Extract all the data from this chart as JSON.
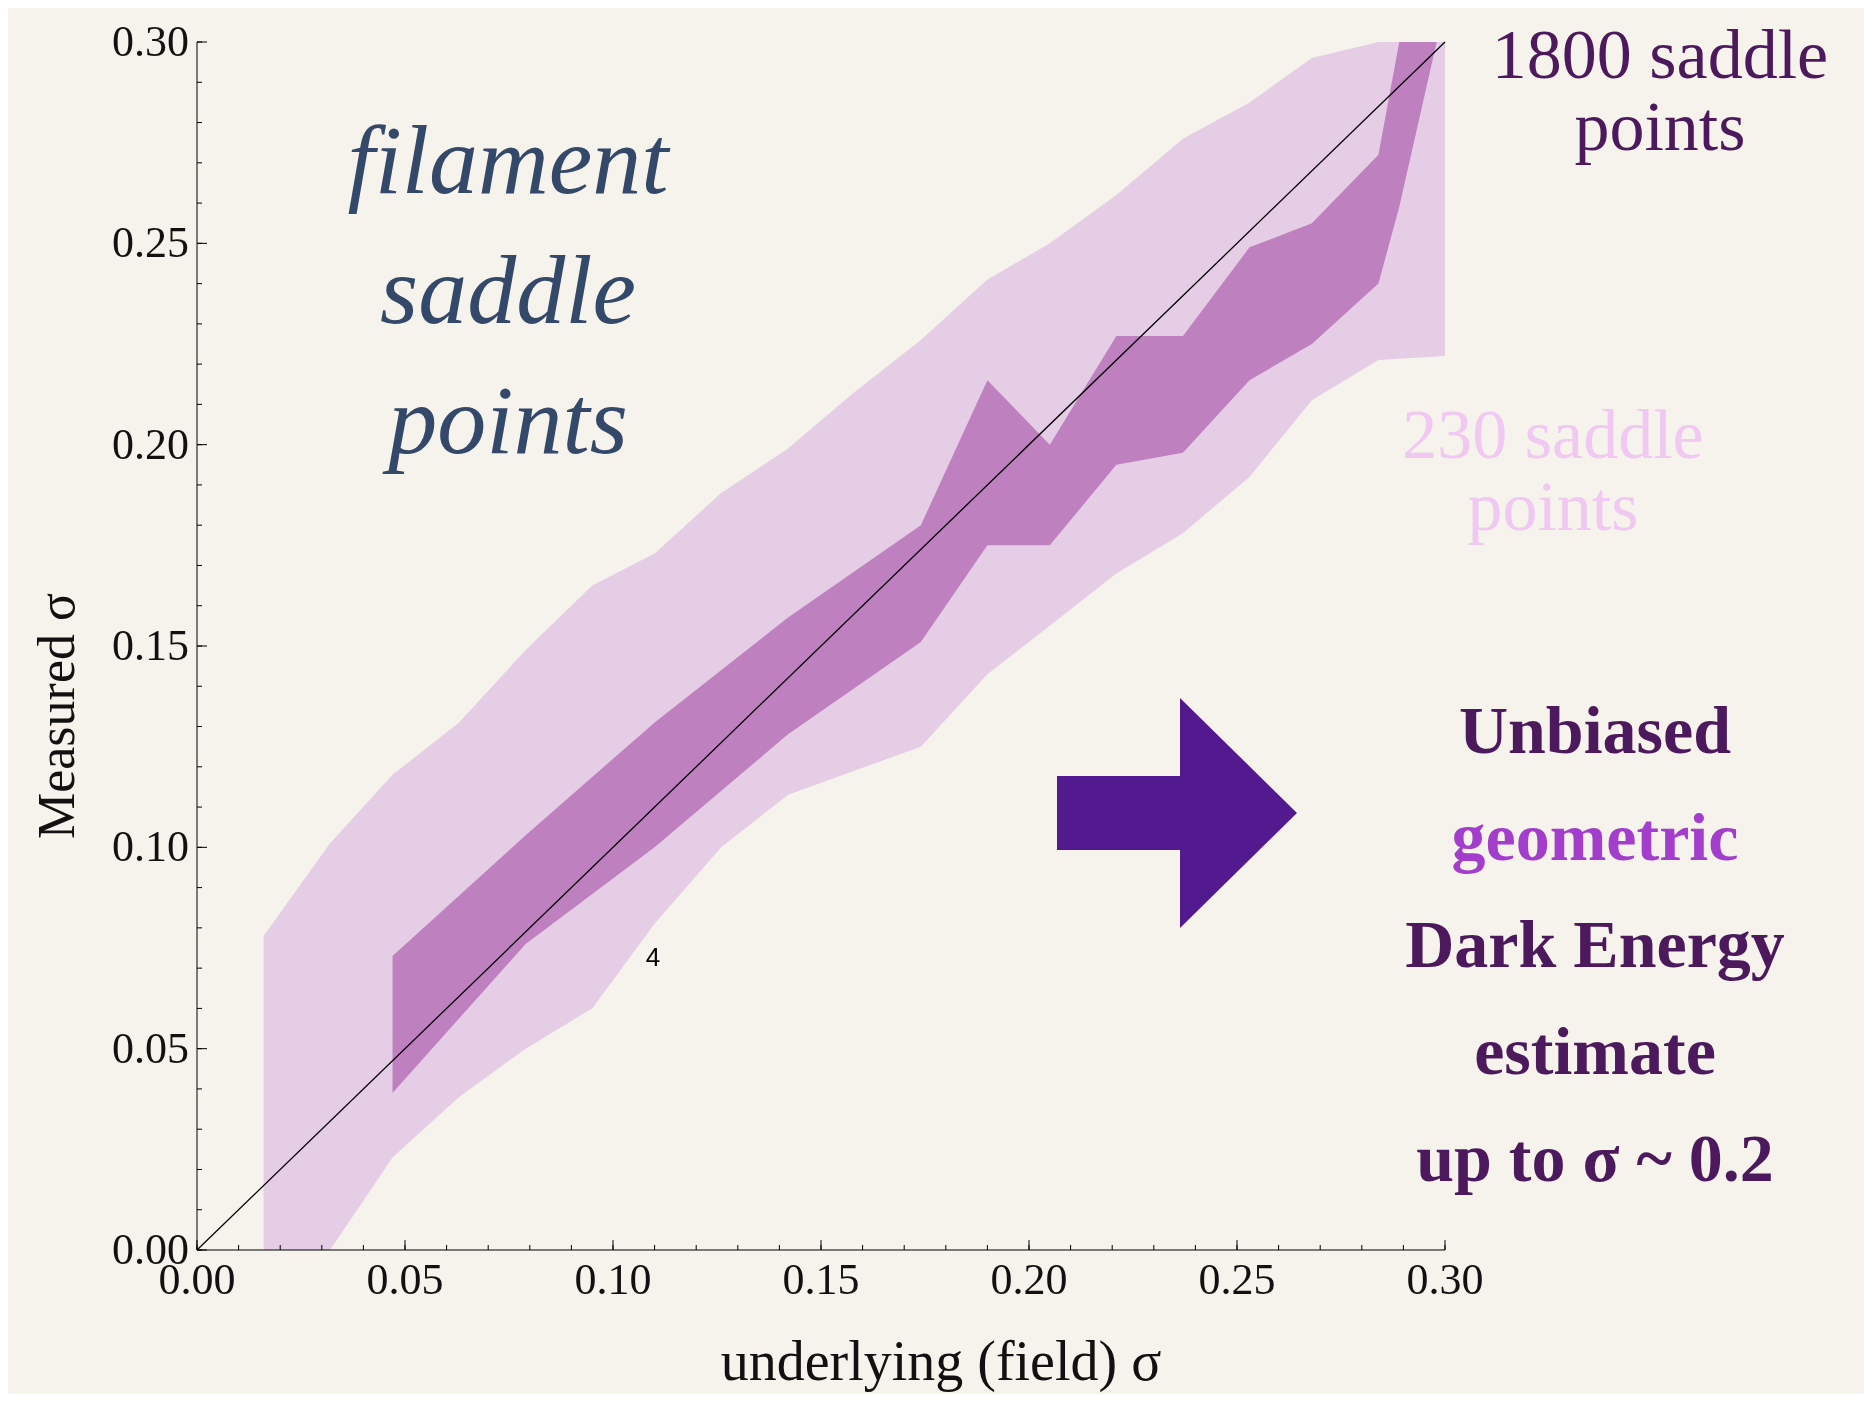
{
  "chart_data": {
    "type": "line",
    "xlabel": "underlying (field) σ",
    "ylabel": "Measured σ",
    "xlim": [
      0,
      0.3
    ],
    "ylim": [
      0,
      0.3
    ],
    "xticks": [
      {
        "value": 0,
        "label": "0.00"
      },
      {
        "value": 0.05,
        "label": "0.05"
      },
      {
        "value": 0.1,
        "label": "0.10"
      },
      {
        "value": 0.15,
        "label": "0.15"
      },
      {
        "value": 0.2,
        "label": "0.20"
      },
      {
        "value": 0.25,
        "label": "0.25"
      },
      {
        "value": 0.3,
        "label": "0.30"
      }
    ],
    "yticks": [
      {
        "value": 0,
        "label": "0.00"
      },
      {
        "value": 0.05,
        "label": "0.05"
      },
      {
        "value": 0.1,
        "label": "0.10"
      },
      {
        "value": 0.15,
        "label": "0.15"
      },
      {
        "value": 0.2,
        "label": "0.20"
      },
      {
        "value": 0.25,
        "label": "0.25"
      },
      {
        "value": 0.3,
        "label": "0.30"
      }
    ],
    "series": [
      {
        "color": "#e6cde6",
        "x": [
          0.016,
          0.032,
          0.047,
          0.063,
          0.079,
          0.095,
          0.11,
          0.126,
          0.142,
          0.158,
          0.174,
          0.19,
          0.205,
          0.221,
          0.237,
          0.253,
          0.268,
          0.284,
          0.3
        ],
        "values": [
          null,
          null,
          null,
          null,
          null,
          null,
          null,
          null,
          null,
          null,
          null,
          null,
          null,
          null,
          null,
          null,
          null,
          null,
          null
        ],
        "lower": [
          0,
          0,
          0.023,
          0.038,
          0.05,
          0.06,
          0.081,
          0.1,
          0.113,
          0.119,
          0.125,
          0.143,
          0.155,
          0.168,
          0.178,
          0.192,
          0.211,
          0.221,
          0.222
        ],
        "upper": [
          0.078,
          0.101,
          0.118,
          0.131,
          0.149,
          0.165,
          0.173,
          0.188,
          0.199,
          0.213,
          0.226,
          0.241,
          0.25,
          0.262,
          0.276,
          0.285,
          0.296,
          0.3,
          0.3
        ]
      },
      {
        "color": "#bf80c0",
        "x": [
          0.047,
          0.079,
          0.11,
          0.142,
          0.174,
          0.19,
          0.205,
          0.221,
          0.237,
          0.253,
          0.268,
          0.284,
          0.289,
          0.298
        ],
        "values": [
          null,
          null,
          null,
          null,
          null,
          null,
          null,
          null,
          null,
          null,
          null,
          null,
          null,
          null
        ],
        "lower": [
          0.039,
          0.076,
          0.1,
          0.128,
          0.151,
          0.175,
          0.175,
          0.195,
          0.198,
          0.216,
          0.225,
          0.24,
          0.259,
          0.3
        ],
        "upper": [
          0.073,
          0.103,
          0.131,
          0.157,
          0.18,
          0.216,
          0.2,
          0.227,
          0.227,
          0.249,
          0.255,
          0.272,
          0.3,
          0.3
        ]
      },
      {
        "color": "#000000",
        "x": [
          0,
          0.3
        ],
        "values": [
          0,
          0.3
        ]
      }
    ],
    "annotations": [
      "filament\nsaddle\npoints",
      "1800 saddle\npoints",
      "230 saddle\npoints",
      "Unbiased\ngeometric\nDark Energy\nestimate\nup to σ ~ 0.2",
      "4"
    ]
  }
}
